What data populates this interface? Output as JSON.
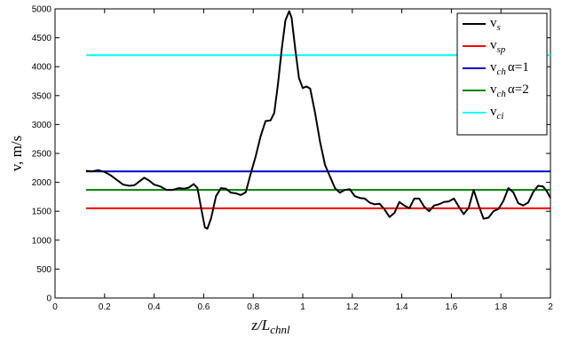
{
  "chart_data": {
    "type": "line",
    "xlabel_main": "z/L",
    "xlabel_sub": "chnl",
    "ylabel": "v, m/s",
    "xlim": [
      0,
      2
    ],
    "ylim": [
      0,
      5000
    ],
    "x_ticks": [
      "0",
      "0.2",
      "0.4",
      "0.6",
      "0.8",
      "1",
      "1.2",
      "1.4",
      "1.6",
      "1.8",
      "2"
    ],
    "y_ticks": [
      "0",
      "500",
      "1000",
      "1500",
      "2000",
      "2500",
      "3000",
      "3500",
      "4000",
      "4500",
      "5000"
    ],
    "grid": false,
    "legend_position": "top-right",
    "series": [
      {
        "key": "vs",
        "main": "v",
        "sub": "s",
        "suffix": "",
        "color": "#000000",
        "width": 2,
        "points": [
          [
            0.125,
            2200
          ],
          [
            0.15,
            2190
          ],
          [
            0.175,
            2210
          ],
          [
            0.2,
            2180
          ],
          [
            0.225,
            2120
          ],
          [
            0.25,
            2040
          ],
          [
            0.275,
            1960
          ],
          [
            0.3,
            1940
          ],
          [
            0.32,
            1950
          ],
          [
            0.345,
            2030
          ],
          [
            0.36,
            2080
          ],
          [
            0.38,
            2030
          ],
          [
            0.4,
            1960
          ],
          [
            0.425,
            1930
          ],
          [
            0.45,
            1870
          ],
          [
            0.475,
            1870
          ],
          [
            0.5,
            1900
          ],
          [
            0.52,
            1890
          ],
          [
            0.54,
            1910
          ],
          [
            0.56,
            1970
          ],
          [
            0.575,
            1900
          ],
          [
            0.59,
            1550
          ],
          [
            0.605,
            1220
          ],
          [
            0.615,
            1200
          ],
          [
            0.63,
            1380
          ],
          [
            0.65,
            1760
          ],
          [
            0.67,
            1900
          ],
          [
            0.69,
            1890
          ],
          [
            0.71,
            1820
          ],
          [
            0.73,
            1810
          ],
          [
            0.75,
            1780
          ],
          [
            0.77,
            1830
          ],
          [
            0.79,
            2150
          ],
          [
            0.81,
            2450
          ],
          [
            0.83,
            2800
          ],
          [
            0.85,
            3060
          ],
          [
            0.87,
            3070
          ],
          [
            0.885,
            3200
          ],
          [
            0.9,
            3700
          ],
          [
            0.915,
            4300
          ],
          [
            0.93,
            4800
          ],
          [
            0.945,
            4960
          ],
          [
            0.955,
            4850
          ],
          [
            0.97,
            4300
          ],
          [
            0.985,
            3800
          ],
          [
            1.0,
            3630
          ],
          [
            1.015,
            3660
          ],
          [
            1.03,
            3620
          ],
          [
            1.05,
            3200
          ],
          [
            1.07,
            2700
          ],
          [
            1.09,
            2300
          ],
          [
            1.11,
            2100
          ],
          [
            1.13,
            1900
          ],
          [
            1.15,
            1820
          ],
          [
            1.17,
            1870
          ],
          [
            1.19,
            1880
          ],
          [
            1.21,
            1760
          ],
          [
            1.23,
            1730
          ],
          [
            1.25,
            1720
          ],
          [
            1.27,
            1650
          ],
          [
            1.29,
            1620
          ],
          [
            1.31,
            1630
          ],
          [
            1.33,
            1530
          ],
          [
            1.35,
            1400
          ],
          [
            1.37,
            1470
          ],
          [
            1.39,
            1660
          ],
          [
            1.41,
            1600
          ],
          [
            1.43,
            1550
          ],
          [
            1.45,
            1720
          ],
          [
            1.47,
            1720
          ],
          [
            1.49,
            1580
          ],
          [
            1.51,
            1500
          ],
          [
            1.53,
            1600
          ],
          [
            1.55,
            1620
          ],
          [
            1.57,
            1660
          ],
          [
            1.59,
            1670
          ],
          [
            1.61,
            1720
          ],
          [
            1.63,
            1580
          ],
          [
            1.65,
            1450
          ],
          [
            1.67,
            1560
          ],
          [
            1.69,
            1870
          ],
          [
            1.71,
            1600
          ],
          [
            1.73,
            1370
          ],
          [
            1.75,
            1390
          ],
          [
            1.77,
            1500
          ],
          [
            1.79,
            1540
          ],
          [
            1.81,
            1680
          ],
          [
            1.83,
            1900
          ],
          [
            1.85,
            1830
          ],
          [
            1.87,
            1640
          ],
          [
            1.89,
            1600
          ],
          [
            1.91,
            1650
          ],
          [
            1.93,
            1830
          ],
          [
            1.95,
            1940
          ],
          [
            1.97,
            1930
          ],
          [
            1.985,
            1850
          ],
          [
            2.0,
            1730
          ]
        ]
      },
      {
        "key": "vsp",
        "main": "v",
        "sub": "sp",
        "suffix": "",
        "color": "#ff0000",
        "width": 2,
        "points": [
          [
            0.125,
            1550
          ],
          [
            2.0,
            1550
          ]
        ]
      },
      {
        "key": "vch1",
        "main": "v",
        "sub": "ch",
        "suffix": "α=1",
        "color": "#0000c8",
        "width": 2,
        "points": [
          [
            0.125,
            2190
          ],
          [
            2.0,
            2190
          ]
        ]
      },
      {
        "key": "vch2",
        "main": "v",
        "sub": "ch",
        "suffix": "α=2",
        "color": "#008000",
        "width": 2,
        "points": [
          [
            0.125,
            1870
          ],
          [
            2.0,
            1870
          ]
        ]
      },
      {
        "key": "vci",
        "main": "v",
        "sub": "ci",
        "suffix": "",
        "color": "#00ffff",
        "width": 2,
        "points": [
          [
            0.125,
            4200
          ],
          [
            2.0,
            4200
          ]
        ]
      }
    ]
  }
}
